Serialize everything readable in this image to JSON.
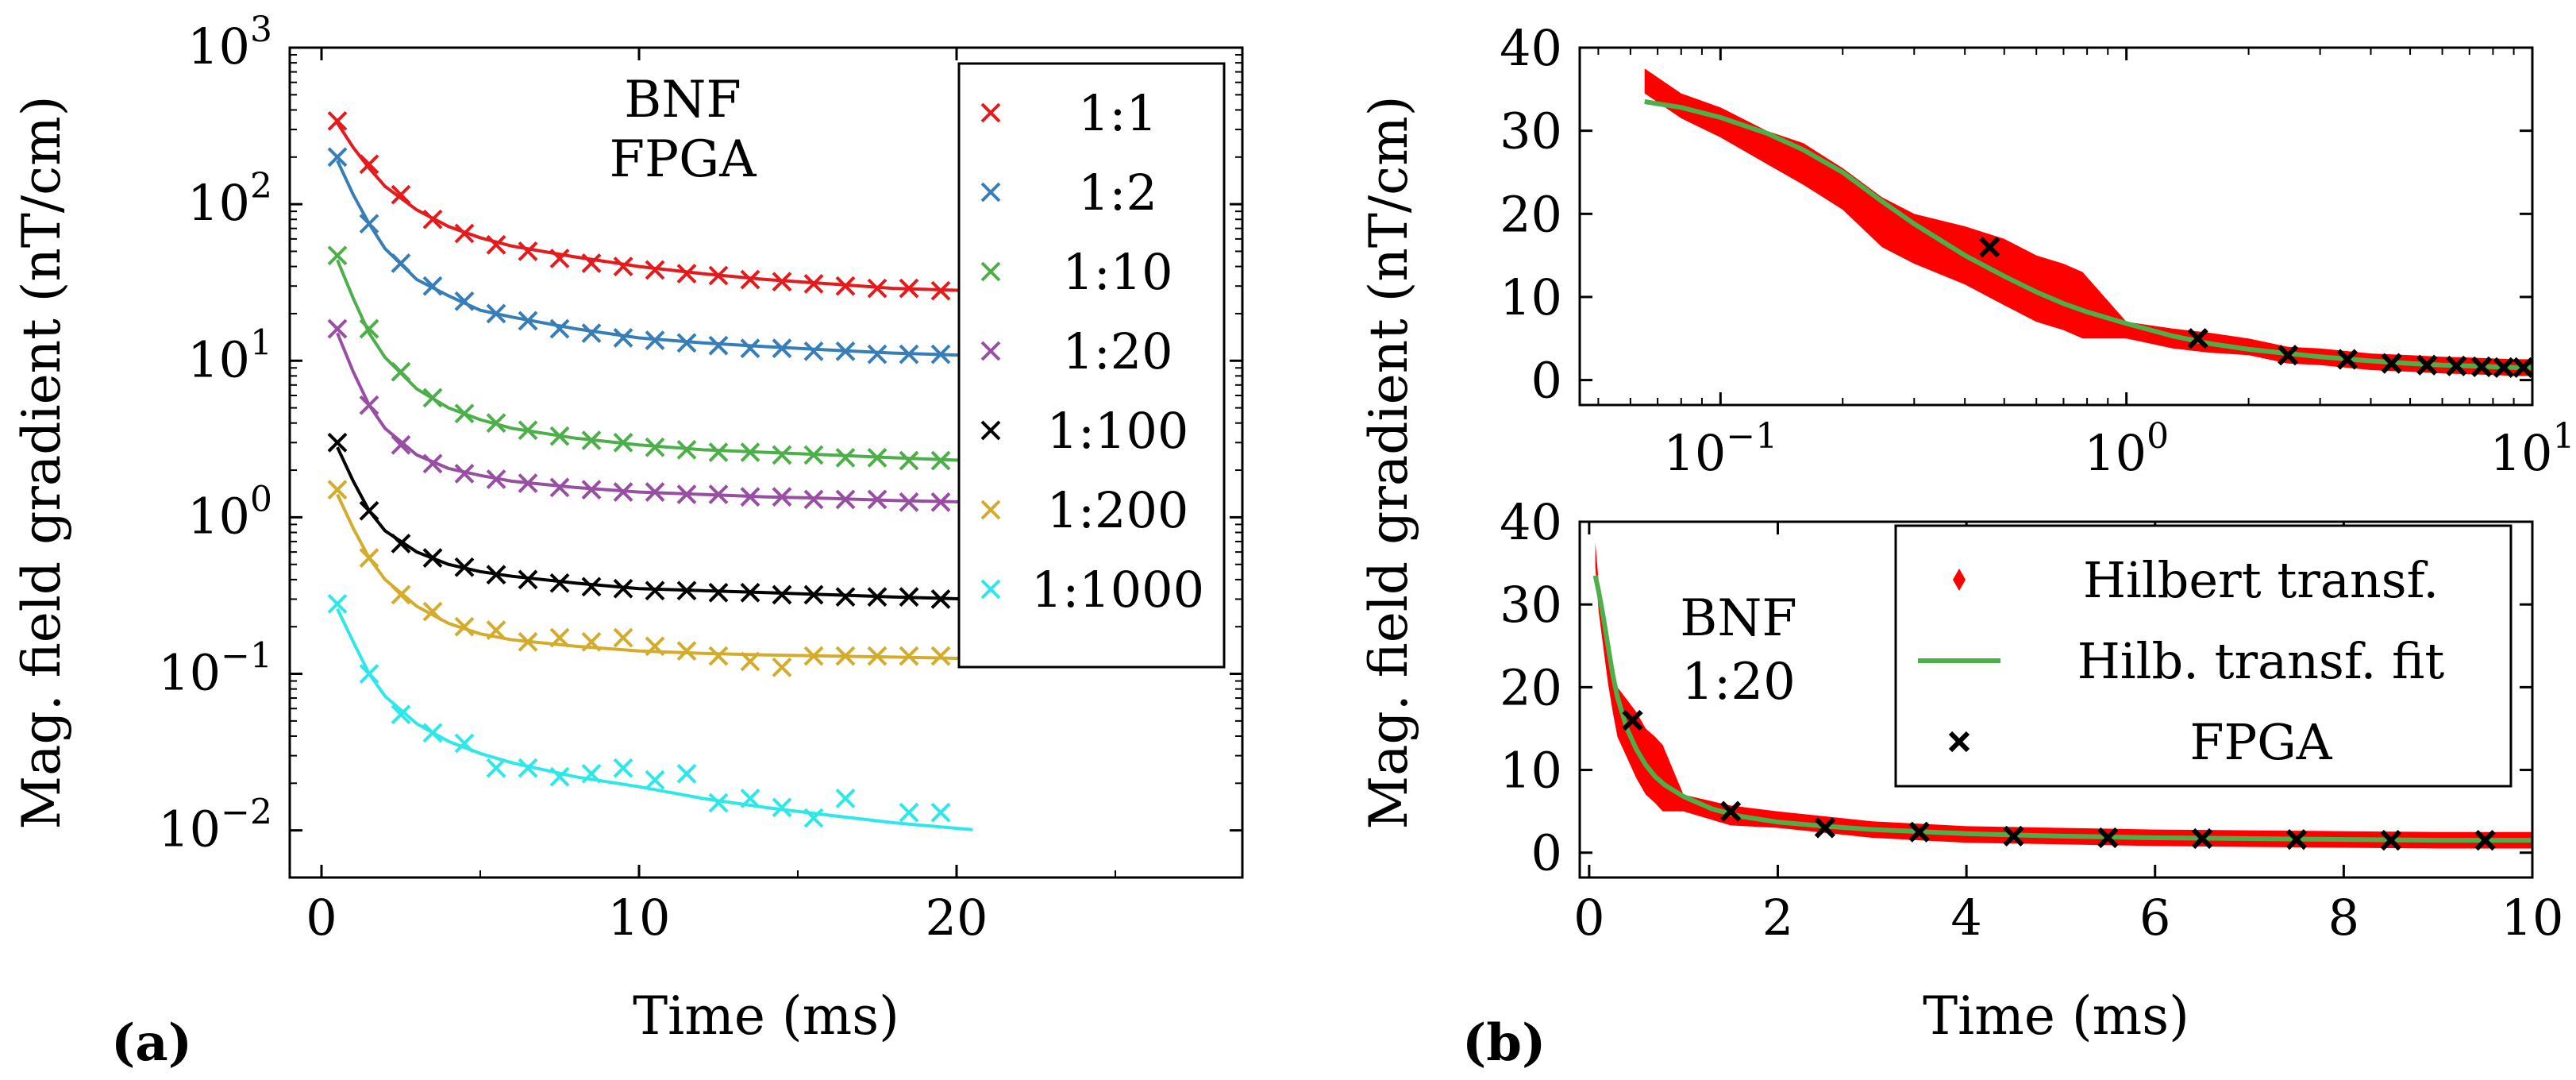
{
  "chart_data": [
    {
      "panel_label": "(a)",
      "type": "scatter",
      "yscale": "log",
      "xlim": [
        -1,
        29
      ],
      "ylim": [
        0.005,
        1000
      ],
      "xticks": [
        0,
        10,
        20
      ],
      "xtick_labels": [
        "0",
        "10",
        "20"
      ],
      "yticks": [
        0.01,
        0.1,
        1,
        10,
        100,
        1000
      ],
      "ytick_labels": [
        {
          "base": "10",
          "exp": "−2"
        },
        {
          "base": "10",
          "exp": "−1"
        },
        {
          "base": "10",
          "exp": "0"
        },
        {
          "base": "10",
          "exp": "1"
        },
        {
          "base": "10",
          "exp": "2"
        },
        {
          "base": "10",
          "exp": "3"
        }
      ],
      "xlabel": "Time (ms)",
      "ylabel": "Mag. field gradient (nT/cm)",
      "annotation": [
        "BNF",
        "FPGA"
      ],
      "legend_position": "top-right",
      "series": [
        {
          "name": "1:1",
          "color": "#e41a1c",
          "x": [
            0.5,
            1.5,
            2.5,
            3.5,
            4.5,
            5.5,
            6.5,
            7.5,
            8.5,
            9.5,
            10.5,
            11.5,
            12.5,
            13.5,
            14.5,
            15.5,
            16.5,
            17.5,
            18.5,
            19.5
          ],
          "values": [
            340,
            180,
            115,
            80,
            65,
            55,
            50,
            45,
            42,
            40,
            38,
            36,
            35,
            33,
            32,
            31,
            30,
            29,
            29,
            28
          ],
          "fit_x": [
            0.5,
            1,
            1.5,
            2,
            3,
            4,
            5,
            6,
            8,
            10,
            12,
            14,
            16,
            18,
            20.5
          ],
          "fit_y": [
            330,
            230,
            170,
            130,
            92,
            72,
            61,
            54,
            46,
            40,
            36,
            33,
            31,
            29,
            28
          ]
        },
        {
          "name": "1:2",
          "color": "#377eb8",
          "x": [
            0.5,
            1.5,
            2.5,
            3.5,
            4.5,
            5.5,
            6.5,
            7.5,
            8.5,
            9.5,
            10.5,
            11.5,
            12.5,
            13.5,
            14.5,
            15.5,
            16.5,
            17.5,
            18.5,
            19.5
          ],
          "values": [
            200,
            75,
            42,
            30,
            24,
            20,
            18,
            16,
            15,
            14,
            13.5,
            13,
            12.5,
            12,
            12,
            11.5,
            11.5,
            11,
            11,
            11
          ],
          "fit_x": [
            0.5,
            1,
            1.5,
            2,
            3,
            4,
            5,
            6,
            8,
            10,
            12,
            14,
            16,
            18,
            20.5
          ],
          "fit_y": [
            190,
            115,
            75,
            52,
            33,
            26,
            21,
            19,
            16,
            14,
            13,
            12.3,
            11.7,
            11.2,
            10.8
          ]
        },
        {
          "name": "1:10",
          "color": "#4daf4a",
          "x": [
            0.5,
            1.5,
            2.5,
            3.5,
            4.5,
            5.5,
            6.5,
            7.5,
            8.5,
            9.5,
            10.5,
            11.5,
            12.5,
            13.5,
            14.5,
            15.5,
            16.5,
            17.5,
            18.5,
            19.5
          ],
          "values": [
            47,
            16,
            8.5,
            5.8,
            4.6,
            4.0,
            3.6,
            3.3,
            3.1,
            3.0,
            2.8,
            2.7,
            2.6,
            2.6,
            2.5,
            2.5,
            2.4,
            2.4,
            2.3,
            2.3
          ],
          "fit_x": [
            0.5,
            1,
            1.5,
            2,
            3,
            4,
            5,
            6,
            8,
            10,
            12,
            14,
            16,
            18,
            20.5
          ],
          "fit_y": [
            44,
            25,
            15,
            10.5,
            6.6,
            5.0,
            4.2,
            3.7,
            3.2,
            2.9,
            2.7,
            2.6,
            2.5,
            2.4,
            2.3
          ]
        },
        {
          "name": "1:20",
          "color": "#984ea3",
          "x": [
            0.5,
            1.5,
            2.5,
            3.5,
            4.5,
            5.5,
            6.5,
            7.5,
            8.5,
            9.5,
            10.5,
            11.5,
            12.5,
            13.5,
            14.5,
            15.5,
            16.5,
            17.5,
            18.5,
            19.5
          ],
          "values": [
            16,
            5.2,
            2.9,
            2.2,
            1.9,
            1.75,
            1.65,
            1.55,
            1.5,
            1.45,
            1.45,
            1.4,
            1.4,
            1.35,
            1.35,
            1.3,
            1.3,
            1.3,
            1.25,
            1.25
          ],
          "fit_x": [
            0.5,
            1,
            1.5,
            2,
            3,
            4,
            5,
            6,
            8,
            10,
            12,
            14,
            16,
            18,
            20.5
          ],
          "fit_y": [
            15,
            8.5,
            5.2,
            3.7,
            2.5,
            2.05,
            1.85,
            1.7,
            1.55,
            1.45,
            1.4,
            1.35,
            1.32,
            1.28,
            1.25
          ]
        },
        {
          "name": "1:100",
          "color": "#000000",
          "x": [
            0.5,
            1.5,
            2.5,
            3.5,
            4.5,
            5.5,
            6.5,
            7.5,
            8.5,
            9.5,
            10.5,
            11.5,
            12.5,
            13.5,
            14.5,
            15.5,
            16.5,
            17.5,
            18.5,
            19.5
          ],
          "values": [
            3.0,
            1.1,
            0.68,
            0.55,
            0.48,
            0.43,
            0.4,
            0.38,
            0.36,
            0.35,
            0.34,
            0.34,
            0.33,
            0.33,
            0.32,
            0.32,
            0.31,
            0.31,
            0.31,
            0.3
          ],
          "fit_x": [
            0.5,
            1,
            1.5,
            2,
            3,
            4,
            5,
            6,
            8,
            10,
            12,
            14,
            16,
            18,
            20.5
          ],
          "fit_y": [
            2.8,
            1.7,
            1.1,
            0.82,
            0.6,
            0.5,
            0.45,
            0.42,
            0.38,
            0.35,
            0.34,
            0.33,
            0.32,
            0.31,
            0.3
          ]
        },
        {
          "name": "1:200",
          "color": "#d4ac2c",
          "x": [
            0.5,
            1.5,
            2.5,
            3.5,
            4.5,
            5.5,
            6.5,
            7.5,
            8.5,
            9.5,
            10.5,
            11.5,
            12.5,
            13.5,
            14.5,
            15.5,
            16.5,
            17.5,
            18.5,
            19.5
          ],
          "values": [
            1.5,
            0.55,
            0.32,
            0.25,
            0.2,
            0.19,
            0.16,
            0.17,
            0.16,
            0.17,
            0.15,
            0.14,
            0.13,
            0.12,
            0.11,
            0.13,
            0.13,
            0.13,
            0.13,
            0.13
          ],
          "fit_x": [
            0.5,
            1,
            1.5,
            2,
            3,
            4,
            5,
            6,
            8,
            10,
            12,
            14,
            16,
            18,
            20.5
          ],
          "fit_y": [
            1.4,
            0.85,
            0.55,
            0.4,
            0.27,
            0.21,
            0.18,
            0.165,
            0.15,
            0.14,
            0.135,
            0.132,
            0.13,
            0.128,
            0.125
          ]
        },
        {
          "name": "1:1000",
          "color": "#2de8e8",
          "x": [
            0.5,
            1.5,
            2.5,
            3.5,
            4.5,
            5.5,
            6.5,
            7.5,
            8.5,
            9.5,
            10.5,
            11.5,
            12.5,
            13.5,
            14.5,
            15.5,
            16.5,
            18.5,
            19.5
          ],
          "values": [
            0.28,
            0.1,
            0.055,
            0.042,
            0.036,
            0.025,
            0.025,
            0.022,
            0.023,
            0.025,
            0.021,
            0.023,
            0.015,
            0.016,
            0.014,
            0.012,
            0.016,
            0.013,
            0.013
          ],
          "fit_x": [
            0.5,
            1,
            1.5,
            2,
            3,
            4,
            5,
            6,
            8,
            10,
            12,
            14,
            16,
            18,
            20.5
          ],
          "fit_y": [
            0.26,
            0.16,
            0.1,
            0.072,
            0.048,
            0.037,
            0.031,
            0.027,
            0.022,
            0.019,
            0.016,
            0.014,
            0.0125,
            0.0112,
            0.0101
          ]
        }
      ]
    },
    {
      "panel_label": "(b)",
      "type": "line",
      "xscale": "log",
      "xlim": [
        0.045,
        10
      ],
      "ylim": [
        -3,
        40
      ],
      "xticks": [
        0.1,
        1,
        10
      ],
      "xtick_labels": [
        {
          "base": "10",
          "exp": "−1"
        },
        {
          "base": "10",
          "exp": "0"
        },
        {
          "base": "10",
          "exp": "1"
        }
      ],
      "yticks": [
        0,
        10,
        20,
        30,
        40
      ],
      "ytick_labels": [
        "0",
        "10",
        "20",
        "30",
        "40"
      ],
      "xlabel": "",
      "ylabel": "",
      "series": [
        {
          "name": "Hilbert transf.",
          "color": "#ff0000",
          "x": [
            0.065,
            0.08,
            0.1,
            0.13,
            0.16,
            0.2,
            0.25,
            0.3,
            0.4,
            0.5,
            0.6,
            0.7,
            0.78,
            1.0,
            1.3,
            1.6,
            2,
            2.5,
            3,
            4,
            5,
            6,
            7,
            8,
            9,
            10
          ],
          "values": [
            36,
            33,
            31,
            28,
            26,
            23,
            19,
            17,
            15,
            13,
            11,
            10,
            9,
            6,
            5,
            4.5,
            4,
            3,
            2.8,
            2.2,
            2.0,
            1.8,
            1.7,
            1.6,
            1.5,
            1.5
          ],
          "half_width": [
            1.5,
            1.5,
            1.8,
            2,
            2.5,
            2.5,
            3,
            3,
            3.5,
            4,
            4,
            4,
            4,
            1,
            1.2,
            1.2,
            1,
            1,
            1,
            1,
            1,
            1,
            1,
            1,
            1,
            1
          ]
        },
        {
          "name": "Hilb. transf. fit",
          "color": "#4daf4a",
          "x": [
            0.065,
            0.08,
            0.1,
            0.13,
            0.16,
            0.2,
            0.25,
            0.3,
            0.4,
            0.5,
            0.6,
            0.7,
            0.8,
            1.0,
            1.3,
            1.6,
            2,
            2.5,
            3,
            4,
            5,
            6,
            7,
            8,
            9,
            10
          ],
          "values": [
            33.5,
            32.8,
            31.6,
            29.7,
            27.7,
            25,
            21.5,
            18.8,
            15,
            12.5,
            10.6,
            9.2,
            8.2,
            6.8,
            5.3,
            4.4,
            3.7,
            3.2,
            2.8,
            2.3,
            2.0,
            1.8,
            1.7,
            1.6,
            1.5,
            1.5
          ]
        },
        {
          "name": "FPGA",
          "color": "#000000",
          "x": [
            0.46,
            1.5,
            2.5,
            3.5,
            4.5,
            5.5,
            6.5,
            7.5,
            8.5,
            9.5
          ],
          "values": [
            16,
            5,
            3,
            2.5,
            2,
            1.8,
            1.7,
            1.6,
            1.5,
            1.5
          ]
        }
      ]
    },
    {
      "panel_label": "(b)",
      "type": "line",
      "xscale": "linear",
      "xlim": [
        -0.1,
        10
      ],
      "ylim": [
        -3,
        40
      ],
      "xticks": [
        0,
        2,
        4,
        6,
        8,
        10
      ],
      "xtick_labels": [
        "0",
        "2",
        "4",
        "6",
        "8",
        "10"
      ],
      "yticks": [
        0,
        10,
        20,
        30,
        40
      ],
      "ytick_labels": [
        "0",
        "10",
        "20",
        "30",
        "40"
      ],
      "xlabel": "Time (ms)",
      "ylabel": "Mag. field gradient (nT/cm)",
      "annotation": [
        "BNF",
        "1:20"
      ],
      "legend_position": "top-right",
      "series": [
        {
          "name": "Hilbert transf.",
          "color": "#ff0000",
          "x": [
            0.065,
            0.1,
            0.15,
            0.2,
            0.25,
            0.3,
            0.4,
            0.5,
            0.6,
            0.7,
            0.78,
            1.0,
            1.5,
            2,
            3,
            4,
            5,
            6,
            7,
            8,
            9,
            10
          ],
          "values": [
            36,
            31,
            27,
            23,
            20,
            17,
            15,
            13,
            11,
            10,
            9,
            6,
            4.5,
            4,
            2.8,
            2.2,
            2.0,
            1.8,
            1.7,
            1.6,
            1.5,
            1.5
          ],
          "half_width": [
            1.5,
            1.8,
            2.2,
            2.5,
            3,
            3,
            3.5,
            4,
            4,
            4,
            4,
            1,
            1.2,
            1,
            1,
            1,
            1,
            1,
            1,
            1,
            1,
            1
          ]
        },
        {
          "name": "Hilb. transf. fit",
          "color": "#4daf4a",
          "x": [
            0.065,
            0.1,
            0.15,
            0.2,
            0.25,
            0.3,
            0.4,
            0.5,
            0.6,
            0.7,
            0.8,
            1.0,
            1.3,
            1.6,
            2,
            2.5,
            3,
            4,
            5,
            6,
            7,
            8,
            9,
            10
          ],
          "values": [
            33.5,
            31.6,
            28.5,
            25,
            21.5,
            18.8,
            15,
            12.5,
            10.6,
            9.2,
            8.2,
            6.8,
            5.3,
            4.4,
            3.7,
            3.2,
            2.8,
            2.3,
            2.0,
            1.8,
            1.7,
            1.6,
            1.5,
            1.5
          ]
        },
        {
          "name": "FPGA",
          "color": "#000000",
          "x": [
            0.46,
            1.5,
            2.5,
            3.5,
            4.5,
            5.5,
            6.5,
            7.5,
            8.5,
            9.5
          ],
          "values": [
            16,
            5,
            3,
            2.5,
            2,
            1.8,
            1.7,
            1.6,
            1.5,
            1.5
          ]
        }
      ]
    }
  ]
}
